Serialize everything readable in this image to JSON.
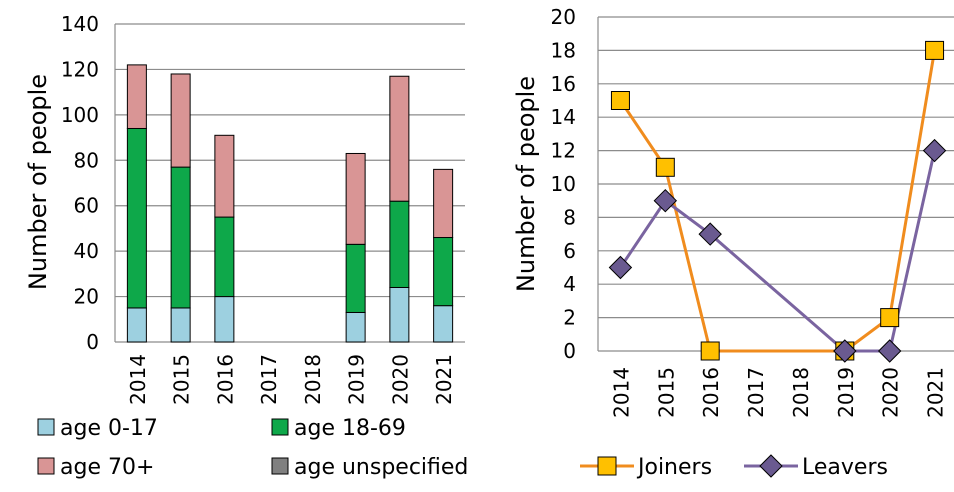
{
  "chart_data": [
    {
      "type": "bar",
      "stacked": true,
      "categories": [
        "2014",
        "2015",
        "2016",
        "2017",
        "2018",
        "2019",
        "2020",
        "2021"
      ],
      "series": [
        {
          "name": "age 0-17",
          "color": "#9dd0e0",
          "values": [
            15,
            15,
            20,
            0,
            0,
            13,
            24,
            16
          ]
        },
        {
          "name": "age 18-69",
          "color": "#0ea84a",
          "values": [
            79,
            62,
            35,
            0,
            0,
            30,
            38,
            30
          ]
        },
        {
          "name": "age 70+",
          "color": "#d99595",
          "values": [
            28,
            41,
            36,
            0,
            0,
            40,
            55,
            30
          ]
        },
        {
          "name": "age unspecified",
          "color": "#808080",
          "values": [
            0,
            0,
            0,
            0,
            0,
            0,
            0,
            0
          ]
        }
      ],
      "ylabel": "Number of people",
      "ylim": [
        0,
        140
      ],
      "yticks": [
        "0",
        "20",
        "40",
        "60",
        "80",
        "100",
        "120",
        "140"
      ],
      "grid": true,
      "legend": "bottom"
    },
    {
      "type": "line",
      "categories": [
        "2014",
        "2015",
        "2016",
        "2017",
        "2018",
        "2019",
        "2020",
        "2021"
      ],
      "series": [
        {
          "name": "Joiners",
          "color": "#f08c1e",
          "marker_color": "#ffc000",
          "marker": "square",
          "points": [
            [
              0,
              15
            ],
            [
              1,
              11
            ],
            [
              2,
              0
            ],
            [
              5,
              0
            ],
            [
              6,
              2
            ],
            [
              7,
              18
            ]
          ]
        },
        {
          "name": "Leavers",
          "color": "#7a64a0",
          "marker_color": "#6a5a90",
          "marker": "diamond",
          "points": [
            [
              0,
              5
            ],
            [
              1,
              9
            ],
            [
              2,
              7
            ],
            [
              5,
              0
            ],
            [
              6,
              0
            ],
            [
              7,
              12
            ]
          ]
        }
      ],
      "ylabel": "Number of people",
      "ylim": [
        0,
        20
      ],
      "yticks": [
        "0",
        "2",
        "4",
        "6",
        "8",
        "10",
        "12",
        "14",
        "16",
        "18",
        "20"
      ],
      "grid": true,
      "legend": "bottom"
    }
  ]
}
